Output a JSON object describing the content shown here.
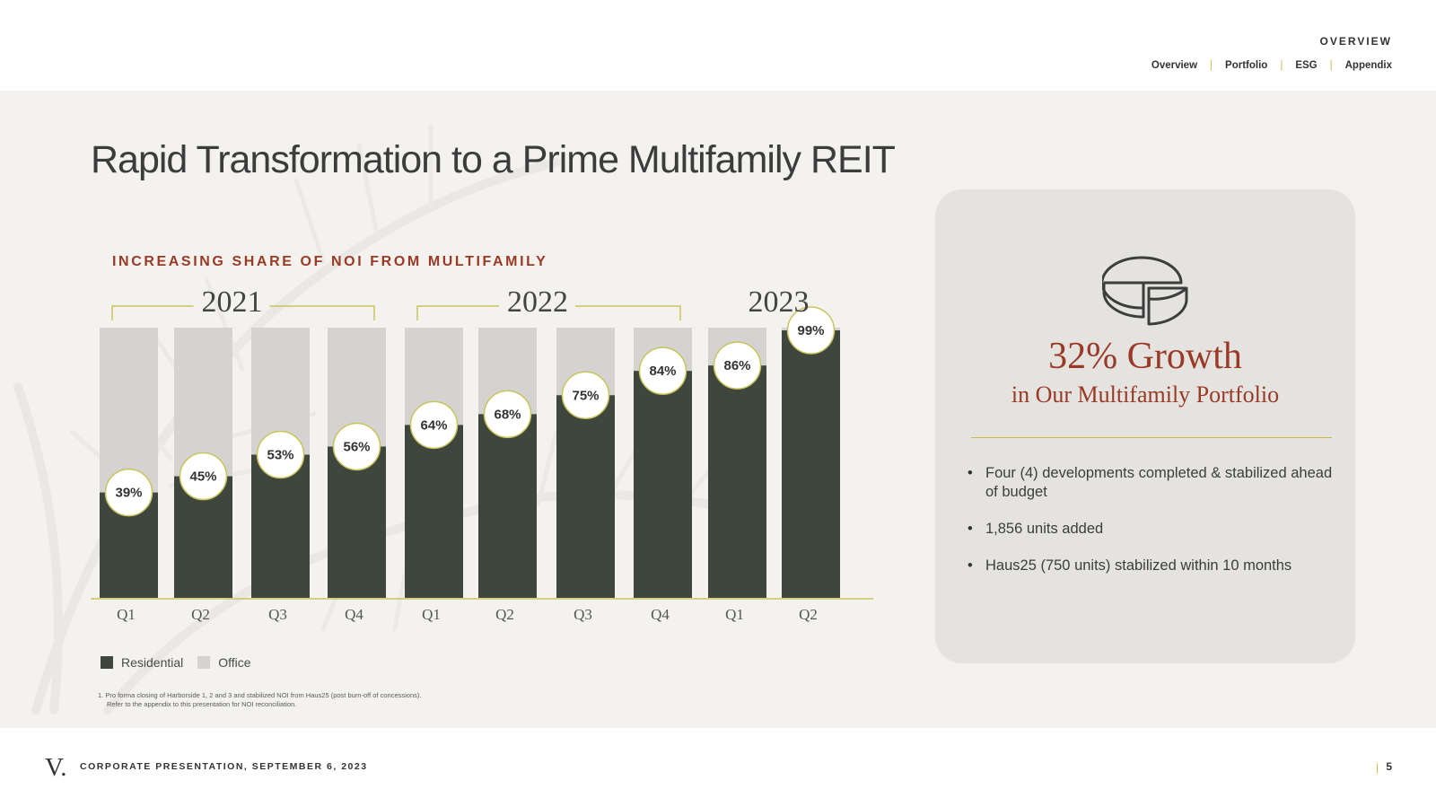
{
  "header": {
    "section_label": "OVERVIEW",
    "nav": [
      "Overview",
      "Portfolio",
      "ESG",
      "Appendix"
    ]
  },
  "page_title": "Rapid Transformation to a Prime Multifamily REIT",
  "chart_title": "INCREASING SHARE OF NOI FROM MULTIFAMILY",
  "chart_data": {
    "type": "bar",
    "stacked": true,
    "title": "INCREASING SHARE OF NOI FROM MULTIFAMILY",
    "year_groups": [
      {
        "label": "2021",
        "categories": [
          "Q1",
          "Q2",
          "Q3",
          "Q4"
        ]
      },
      {
        "label": "2022",
        "categories": [
          "Q1",
          "Q2",
          "Q3",
          "Q4"
        ]
      },
      {
        "label": "2023",
        "categories": [
          "Q1",
          "Q2"
        ]
      }
    ],
    "categories": [
      "Q1",
      "Q2",
      "Q3",
      "Q4",
      "Q1",
      "Q2",
      "Q3",
      "Q4",
      "Q1",
      "Q2"
    ],
    "series": [
      {
        "name": "Residential",
        "values": [
          39,
          45,
          53,
          56,
          64,
          68,
          75,
          84,
          86,
          99
        ],
        "color": "#3f463e"
      },
      {
        "name": "Office",
        "values": [
          61,
          55,
          47,
          44,
          36,
          32,
          25,
          16,
          14,
          1
        ],
        "color": "#d4d3d1"
      }
    ],
    "data_labels": [
      "39%",
      "45%",
      "53%",
      "56%",
      "64%",
      "68%",
      "75%",
      "84%",
      "86%",
      "99%"
    ],
    "ylim": [
      0,
      100
    ],
    "xlabel": "",
    "ylabel": "",
    "legend_position": "bottom-left",
    "grid": false
  },
  "legend": {
    "residential": "Residential",
    "office": "Office"
  },
  "footnote": {
    "line1": "1.  Pro forma closing of Harborside 1, 2 and 3 and stabilized NOI from Haus25 (post burn-off of concessions).",
    "line2": "Refer to the appendix to this presentation for NOI reconciliation."
  },
  "card": {
    "icon": "pie-chart-icon",
    "headline": "32% Growth",
    "subheadline": "in Our Multifamily Portfolio",
    "bullets": [
      "Four (4) developments completed & stabilized ahead of budget",
      "1,856 units added",
      "Haus25 (750 units) stabilized within 10 months"
    ]
  },
  "footer": {
    "logo": "V.",
    "text": "CORPORATE PRESENTATION, SEPTEMBER 6, 2023",
    "page_number": "5"
  },
  "colors": {
    "accent": "#9a3a26",
    "gold": "#c9b94a",
    "residential": "#3f463e",
    "office": "#d4d3d1",
    "band_bg": "#f3f2ef",
    "card_bg": "#e4e3e0"
  }
}
